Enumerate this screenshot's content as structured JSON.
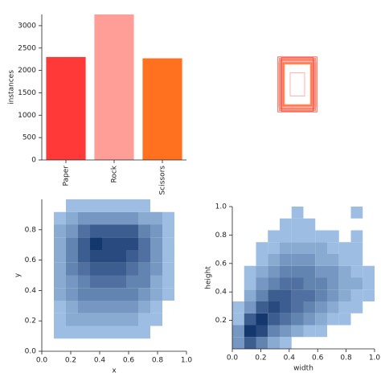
{
  "chart_data": [
    {
      "type": "bar",
      "ylabel": "instances",
      "categories": [
        "Paper",
        "Rock",
        "Scissors"
      ],
      "values": [
        2300,
        3250,
        2270
      ],
      "colors": [
        "#ff3838",
        "#ff9d97",
        "#ff701f"
      ],
      "ylim": [
        0,
        3250
      ],
      "yticks": [
        0,
        500,
        1000,
        1500,
        2000,
        2500,
        3000
      ]
    },
    {
      "type": "boxes",
      "colors": [
        "#ff3838",
        "#ff701f",
        "#ff9d97"
      ],
      "boxes": [
        [
          0.27,
          0.38
        ],
        [
          0.25,
          0.36
        ],
        [
          0.24,
          0.35
        ],
        [
          0.23,
          0.34
        ],
        [
          0.22,
          0.33
        ],
        [
          0.21,
          0.32
        ],
        [
          0.2,
          0.3
        ],
        [
          0.19,
          0.29
        ],
        [
          0.26,
          0.31
        ],
        [
          0.22,
          0.37
        ],
        [
          0.18,
          0.28
        ],
        [
          0.1,
          0.16
        ]
      ]
    },
    {
      "type": "heatmap",
      "xlabel": "x",
      "ylabel": "y",
      "xlim": [
        0,
        1
      ],
      "ylim": [
        0,
        1
      ],
      "xticks": [
        {
          "value": 0,
          "label": "0.0"
        },
        {
          "value": 0.2,
          "label": "0.2"
        },
        {
          "value": 0.4,
          "label": "0.4"
        },
        {
          "value": 0.6,
          "label": "0.6"
        },
        {
          "value": 0.8,
          "label": "0.8"
        },
        {
          "value": 1,
          "label": "1.0"
        }
      ],
      "yticks": [
        {
          "value": 0,
          "label": "0.0"
        },
        {
          "value": 0.2,
          "label": "0.2"
        },
        {
          "value": 0.4,
          "label": "0.4"
        },
        {
          "value": 0.6,
          "label": "0.6"
        },
        {
          "value": 0.8,
          "label": "0.8"
        }
      ],
      "counts": [
        [
          0,
          0,
          0,
          0,
          0,
          0,
          0,
          0,
          0,
          0,
          0,
          0
        ],
        [
          0,
          1,
          1,
          1,
          1,
          1,
          1,
          1,
          1,
          0,
          0,
          0
        ],
        [
          0,
          1,
          2,
          2,
          2,
          2,
          2,
          2,
          1,
          1,
          0,
          0
        ],
        [
          0,
          1,
          2,
          3,
          3,
          3,
          3,
          3,
          2,
          1,
          0,
          0
        ],
        [
          0,
          2,
          3,
          4,
          4,
          4,
          4,
          4,
          3,
          2,
          1,
          0
        ],
        [
          0,
          2,
          3,
          4,
          5,
          5,
          5,
          4,
          4,
          2,
          1,
          0
        ],
        [
          0,
          2,
          4,
          5,
          6,
          6,
          6,
          5,
          4,
          3,
          1,
          0
        ],
        [
          0,
          2,
          4,
          6,
          7,
          7,
          7,
          6,
          5,
          3,
          1,
          0
        ],
        [
          0,
          2,
          4,
          6,
          8,
          7,
          7,
          7,
          5,
          3,
          1,
          0
        ],
        [
          0,
          2,
          3,
          5,
          6,
          6,
          6,
          6,
          4,
          3,
          1,
          0
        ],
        [
          0,
          1,
          2,
          3,
          3,
          3,
          3,
          3,
          2,
          2,
          1,
          0
        ],
        [
          0,
          0,
          1,
          1,
          1,
          1,
          1,
          1,
          1,
          0,
          0,
          0
        ]
      ]
    },
    {
      "type": "heatmap",
      "xlabel": "width",
      "ylabel": "height",
      "xlim": [
        0,
        1
      ],
      "ylim": [
        0,
        1
      ],
      "xticks": [
        {
          "value": 0,
          "label": "0.0"
        },
        {
          "value": 0.2,
          "label": "0.2"
        },
        {
          "value": 0.4,
          "label": "0.4"
        },
        {
          "value": 0.6,
          "label": "0.6"
        },
        {
          "value": 0.8,
          "label": "0.8"
        },
        {
          "value": 1,
          "label": "1.0"
        }
      ],
      "yticks": [
        {
          "value": 0.2,
          "label": "0.2"
        },
        {
          "value": 0.4,
          "label": "0.4"
        },
        {
          "value": 0.6,
          "label": "0.6"
        },
        {
          "value": 0.8,
          "label": "0.8"
        },
        {
          "value": 1,
          "label": "1.0"
        }
      ],
      "counts": [
        [
          3,
          6,
          4,
          2,
          1,
          0,
          0,
          0,
          0,
          0,
          0,
          0
        ],
        [
          3,
          8,
          7,
          4,
          3,
          2,
          1,
          1,
          0,
          0,
          0,
          0
        ],
        [
          1,
          6,
          8,
          6,
          5,
          4,
          3,
          2,
          1,
          1,
          0,
          0
        ],
        [
          1,
          3,
          6,
          7,
          6,
          5,
          4,
          3,
          2,
          1,
          1,
          0
        ],
        [
          0,
          2,
          4,
          6,
          6,
          5,
          5,
          4,
          3,
          2,
          1,
          1
        ],
        [
          0,
          1,
          3,
          4,
          5,
          5,
          4,
          4,
          3,
          2,
          2,
          1
        ],
        [
          0,
          1,
          2,
          3,
          4,
          4,
          4,
          3,
          3,
          2,
          1,
          1
        ],
        [
          0,
          0,
          1,
          2,
          3,
          3,
          3,
          2,
          2,
          1,
          1,
          0
        ],
        [
          0,
          0,
          1,
          1,
          2,
          2,
          2,
          2,
          1,
          1,
          1,
          0
        ],
        [
          0,
          0,
          0,
          1,
          1,
          1,
          1,
          1,
          1,
          0,
          1,
          0
        ],
        [
          0,
          0,
          0,
          0,
          1,
          1,
          1,
          0,
          0,
          0,
          0,
          0
        ],
        [
          0,
          0,
          0,
          0,
          0,
          1,
          0,
          0,
          0,
          0,
          1,
          0
        ]
      ]
    }
  ]
}
